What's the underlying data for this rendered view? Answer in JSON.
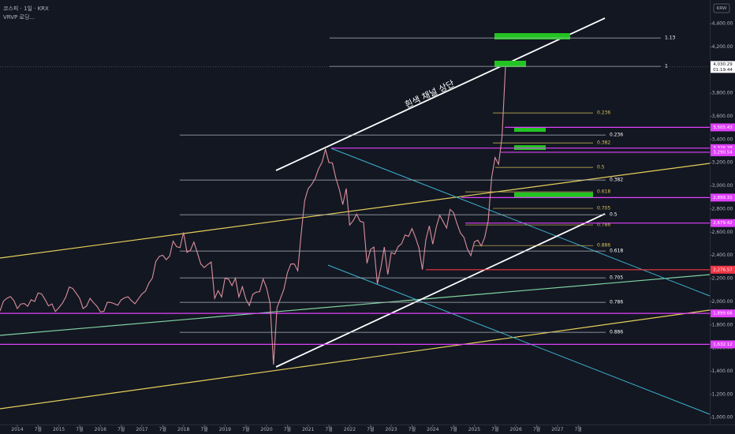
{
  "header": {
    "symbol": "코스피 · 1일 · KRX",
    "indicator": "VRVP 로딩..."
  },
  "currency": "KRW",
  "annotation": "흰색 채널 상단",
  "chart_data": {
    "type": "line",
    "color": "#d98f9c",
    "xlim": [
      "2013-08",
      "2030-09"
    ],
    "ylim": [
      940,
      4605
    ],
    "xticks": [
      {
        "value": "2014-01",
        "label": "2014"
      },
      {
        "value": "2014-07",
        "label": "7월"
      },
      {
        "value": "2015-01",
        "label": "2015"
      },
      {
        "value": "2015-07",
        "label": "7월"
      },
      {
        "value": "2016-01",
        "label": "2016"
      },
      {
        "value": "2016-07",
        "label": "7월"
      },
      {
        "value": "2017-01",
        "label": "2017"
      },
      {
        "value": "2017-07",
        "label": "7월"
      },
      {
        "value": "2018-01",
        "label": "2018"
      },
      {
        "value": "2018-07",
        "label": "7월"
      },
      {
        "value": "2019-01",
        "label": "2019"
      },
      {
        "value": "2019-07",
        "label": "7월"
      },
      {
        "value": "2020-01",
        "label": "2020"
      },
      {
        "value": "2020-07",
        "label": "7월"
      },
      {
        "value": "2021-01",
        "label": "2021"
      },
      {
        "value": "2021-07",
        "label": "7월"
      },
      {
        "value": "2022-01",
        "label": "2022"
      },
      {
        "value": "2022-07",
        "label": "7월"
      },
      {
        "value": "2023-01",
        "label": "2023"
      },
      {
        "value": "2023-07",
        "label": "7월"
      },
      {
        "value": "2024-01",
        "label": "2024"
      },
      {
        "value": "2024-07",
        "label": "7월"
      },
      {
        "value": "2025-01",
        "label": "2025"
      },
      {
        "value": "2025-07",
        "label": "7월"
      },
      {
        "value": "2026-01",
        "label": "2026"
      },
      {
        "value": "2026-07",
        "label": "7월"
      },
      {
        "value": "2027-01",
        "label": "2027"
      },
      {
        "value": "2027-07",
        "label": "7월"
      }
    ],
    "yticks": [
      {
        "value": 1000,
        "label": "1,000.00"
      },
      {
        "value": 1200,
        "label": "1,200.00"
      },
      {
        "value": 1400,
        "label": "1,400.00"
      },
      {
        "value": 1600,
        "label": "1,600.00"
      },
      {
        "value": 1800,
        "label": "1,800.00"
      },
      {
        "value": 2000,
        "label": "2,000.00"
      },
      {
        "value": 2200,
        "label": "2,200.00"
      },
      {
        "value": 2400,
        "label": "2,400.00"
      },
      {
        "value": 2600,
        "label": "2,600.00"
      },
      {
        "value": 2800,
        "label": "2,800.00"
      },
      {
        "value": 3000,
        "label": "3,000.00"
      },
      {
        "value": 3200,
        "label": "3,200.00"
      },
      {
        "value": 3400,
        "label": "3,400.00"
      },
      {
        "value": 3600,
        "label": "3,600.00"
      },
      {
        "value": 3800,
        "label": "3,800.00"
      },
      {
        "value": 4200,
        "label": "4,200.00"
      },
      {
        "value": 4400,
        "label": "4,400.00"
      }
    ],
    "x": [
      "2013-08",
      "2013-09",
      "2013-10",
      "2013-11",
      "2013-12",
      "2014-01",
      "2014-02",
      "2014-03",
      "2014-04",
      "2014-05",
      "2014-06",
      "2014-07",
      "2014-08",
      "2014-09",
      "2014-10",
      "2014-11",
      "2014-12",
      "2015-01",
      "2015-02",
      "2015-03",
      "2015-04",
      "2015-05",
      "2015-06",
      "2015-07",
      "2015-08",
      "2015-09",
      "2015-10",
      "2015-11",
      "2015-12",
      "2016-01",
      "2016-02",
      "2016-03",
      "2016-04",
      "2016-05",
      "2016-06",
      "2016-07",
      "2016-08",
      "2016-09",
      "2016-10",
      "2016-11",
      "2016-12",
      "2017-01",
      "2017-02",
      "2017-03",
      "2017-04",
      "2017-05",
      "2017-06",
      "2017-07",
      "2017-08",
      "2017-09",
      "2017-10",
      "2017-11",
      "2017-12",
      "2018-01",
      "2018-02",
      "2018-03",
      "2018-04",
      "2018-05",
      "2018-06",
      "2018-07",
      "2018-08",
      "2018-09",
      "2018-10",
      "2018-11",
      "2018-12",
      "2019-01",
      "2019-02",
      "2019-03",
      "2019-04",
      "2019-05",
      "2019-06",
      "2019-07",
      "2019-08",
      "2019-09",
      "2019-10",
      "2019-11",
      "2019-12",
      "2020-01",
      "2020-02",
      "2020-03",
      "2020-04",
      "2020-05",
      "2020-06",
      "2020-07",
      "2020-08",
      "2020-09",
      "2020-10",
      "2020-11",
      "2020-12",
      "2021-01",
      "2021-02",
      "2021-03",
      "2021-04",
      "2021-05",
      "2021-06",
      "2021-07",
      "2021-08",
      "2021-09",
      "2021-10",
      "2021-11",
      "2021-12",
      "2022-01",
      "2022-02",
      "2022-03",
      "2022-04",
      "2022-05",
      "2022-06",
      "2022-07",
      "2022-08",
      "2022-09",
      "2022-10",
      "2022-11",
      "2022-12",
      "2023-01",
      "2023-02",
      "2023-03",
      "2023-04",
      "2023-05",
      "2023-06",
      "2023-07",
      "2023-08",
      "2023-09",
      "2023-10",
      "2023-11",
      "2023-12",
      "2024-01",
      "2024-02",
      "2024-03",
      "2024-04",
      "2024-05",
      "2024-06",
      "2024-07",
      "2024-08",
      "2024-09",
      "2024-10",
      "2024-11",
      "2024-12",
      "2025-01",
      "2025-02",
      "2025-03",
      "2025-04",
      "2025-05",
      "2025-06",
      "2025-07",
      "2025-08",
      "2025-09",
      "2025-10"
    ],
    "values": [
      1920,
      2005,
      2030,
      2045,
      2011,
      1941,
      1980,
      1985,
      1961,
      2017,
      2002,
      2076,
      2068,
      2020,
      1964,
      1981,
      1916,
      1949,
      1986,
      2041,
      2127,
      2115,
      2074,
      2030,
      1941,
      1963,
      2029,
      1992,
      1961,
      1912,
      1917,
      1996,
      1994,
      1983,
      1970,
      2016,
      2034,
      2043,
      2008,
      1983,
      2026,
      2067,
      2091,
      2160,
      2205,
      2347,
      2391,
      2402,
      2363,
      2394,
      2523,
      2476,
      2467,
      2598,
      2427,
      2445,
      2515,
      2423,
      2326,
      2295,
      2322,
      2343,
      2029,
      2096,
      2041,
      2204,
      2195,
      2140,
      2203,
      2041,
      2130,
      2024,
      1967,
      2063,
      2083,
      2087,
      2197,
      2119,
      1987,
      1457,
      1947,
      2029,
      2108,
      2249,
      2326,
      2327,
      2267,
      2591,
      2873,
      2976,
      3012,
      3061,
      3147,
      3203,
      3316,
      3202,
      3199,
      3068,
      2970,
      2839,
      2977,
      2663,
      2699,
      2757,
      2695,
      2685,
      2332,
      2451,
      2472,
      2155,
      2293,
      2472,
      2236,
      2425,
      2412,
      2476,
      2501,
      2577,
      2564,
      2632,
      2556,
      2465,
      2277,
      2535,
      2655,
      2497,
      2642,
      2747,
      2692,
      2636,
      2797,
      2770,
      2674,
      2593,
      2556,
      2455,
      2399,
      2517,
      2532,
      2481,
      2556,
      2697,
      3071,
      3245,
      3186,
      3424,
      4030.29
    ],
    "current_price": {
      "value": 4030.29,
      "label": "4,030.29"
    },
    "countdown": "01:19:44",
    "price_lines": [
      {
        "price": 3505.43,
        "label": "3,505.43",
        "color": "#e040fb"
      },
      {
        "price": 3326.28,
        "label": "3,326.28",
        "color": "#e040fb"
      },
      {
        "price": 3290.54,
        "label": "3,290.54",
        "color": "#e040fb"
      },
      {
        "price": 2899.31,
        "label": "2,899.31",
        "color": "#e040fb"
      },
      {
        "price": 2679.42,
        "label": "2,679.42",
        "color": "#e040fb"
      },
      {
        "price": 2276.57,
        "label": "2,276.57",
        "color": "#f23645"
      },
      {
        "price": 1899.66,
        "label": "1,899.66",
        "color": "#e040fb"
      },
      {
        "price": 1632.12,
        "label": "1,632.12",
        "color": "#e040fb"
      }
    ],
    "fib_main": {
      "color": "#b2b5be",
      "levels": [
        {
          "ratio": 1.13,
          "price": 4277
        },
        {
          "ratio": 1,
          "price": 4032
        },
        {
          "ratio": 0.236,
          "price": 3439
        },
        {
          "ratio": 0.382,
          "price": 3051
        },
        {
          "ratio": 0.5,
          "price": 2751
        },
        {
          "ratio": 0.618,
          "price": 2438
        },
        {
          "ratio": 0.705,
          "price": 2206
        },
        {
          "ratio": 0.786,
          "price": 1995
        },
        {
          "ratio": 0.886,
          "price": 1736
        }
      ]
    },
    "fib_secondary": {
      "color": "#d8c25a",
      "levels": [
        {
          "ratio": 0.236,
          "price": 3630
        },
        {
          "ratio": 0.382,
          "price": 3371
        },
        {
          "ratio": 0.5,
          "price": 3160
        },
        {
          "ratio": 0.618,
          "price": 2949
        },
        {
          "ratio": 0.705,
          "price": 2806
        },
        {
          "ratio": 0.786,
          "price": 2663
        },
        {
          "ratio": 0.886,
          "price": 2485
        }
      ]
    }
  }
}
